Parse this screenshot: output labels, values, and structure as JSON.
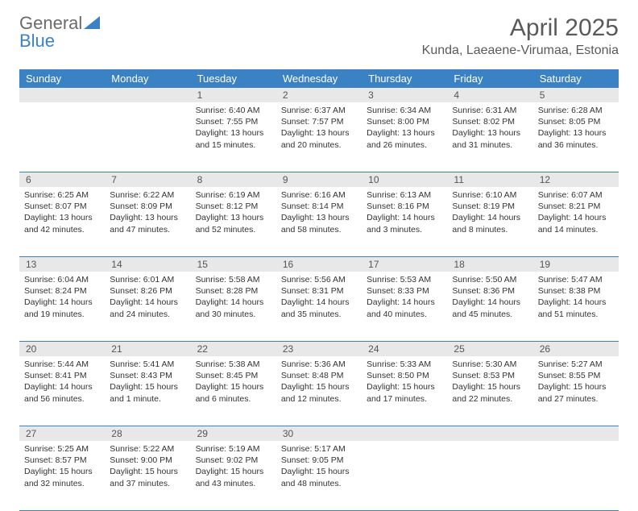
{
  "logo": {
    "text_a": "General",
    "text_b": "Blue"
  },
  "title": "April 2025",
  "location": "Kunda, Laeaene-Virumaa, Estonia",
  "colors": {
    "header_bg": "#3b82c4",
    "header_text": "#ffffff",
    "numrow_bg": "#e8e8e8",
    "text": "#333333",
    "logo_gray": "#6b6b6b",
    "logo_blue": "#3b82c4"
  },
  "daynames": [
    "Sunday",
    "Monday",
    "Tuesday",
    "Wednesday",
    "Thursday",
    "Friday",
    "Saturday"
  ],
  "weeks": [
    {
      "nums": [
        "",
        "",
        "1",
        "2",
        "3",
        "4",
        "5"
      ],
      "cells": [
        null,
        null,
        {
          "sunrise": "Sunrise: 6:40 AM",
          "sunset": "Sunset: 7:55 PM",
          "day1": "Daylight: 13 hours",
          "day2": "and 15 minutes."
        },
        {
          "sunrise": "Sunrise: 6:37 AM",
          "sunset": "Sunset: 7:57 PM",
          "day1": "Daylight: 13 hours",
          "day2": "and 20 minutes."
        },
        {
          "sunrise": "Sunrise: 6:34 AM",
          "sunset": "Sunset: 8:00 PM",
          "day1": "Daylight: 13 hours",
          "day2": "and 26 minutes."
        },
        {
          "sunrise": "Sunrise: 6:31 AM",
          "sunset": "Sunset: 8:02 PM",
          "day1": "Daylight: 13 hours",
          "day2": "and 31 minutes."
        },
        {
          "sunrise": "Sunrise: 6:28 AM",
          "sunset": "Sunset: 8:05 PM",
          "day1": "Daylight: 13 hours",
          "day2": "and 36 minutes."
        }
      ]
    },
    {
      "nums": [
        "6",
        "7",
        "8",
        "9",
        "10",
        "11",
        "12"
      ],
      "cells": [
        {
          "sunrise": "Sunrise: 6:25 AM",
          "sunset": "Sunset: 8:07 PM",
          "day1": "Daylight: 13 hours",
          "day2": "and 42 minutes."
        },
        {
          "sunrise": "Sunrise: 6:22 AM",
          "sunset": "Sunset: 8:09 PM",
          "day1": "Daylight: 13 hours",
          "day2": "and 47 minutes."
        },
        {
          "sunrise": "Sunrise: 6:19 AM",
          "sunset": "Sunset: 8:12 PM",
          "day1": "Daylight: 13 hours",
          "day2": "and 52 minutes."
        },
        {
          "sunrise": "Sunrise: 6:16 AM",
          "sunset": "Sunset: 8:14 PM",
          "day1": "Daylight: 13 hours",
          "day2": "and 58 minutes."
        },
        {
          "sunrise": "Sunrise: 6:13 AM",
          "sunset": "Sunset: 8:16 PM",
          "day1": "Daylight: 14 hours",
          "day2": "and 3 minutes."
        },
        {
          "sunrise": "Sunrise: 6:10 AM",
          "sunset": "Sunset: 8:19 PM",
          "day1": "Daylight: 14 hours",
          "day2": "and 8 minutes."
        },
        {
          "sunrise": "Sunrise: 6:07 AM",
          "sunset": "Sunset: 8:21 PM",
          "day1": "Daylight: 14 hours",
          "day2": "and 14 minutes."
        }
      ]
    },
    {
      "nums": [
        "13",
        "14",
        "15",
        "16",
        "17",
        "18",
        "19"
      ],
      "cells": [
        {
          "sunrise": "Sunrise: 6:04 AM",
          "sunset": "Sunset: 8:24 PM",
          "day1": "Daylight: 14 hours",
          "day2": "and 19 minutes."
        },
        {
          "sunrise": "Sunrise: 6:01 AM",
          "sunset": "Sunset: 8:26 PM",
          "day1": "Daylight: 14 hours",
          "day2": "and 24 minutes."
        },
        {
          "sunrise": "Sunrise: 5:58 AM",
          "sunset": "Sunset: 8:28 PM",
          "day1": "Daylight: 14 hours",
          "day2": "and 30 minutes."
        },
        {
          "sunrise": "Sunrise: 5:56 AM",
          "sunset": "Sunset: 8:31 PM",
          "day1": "Daylight: 14 hours",
          "day2": "and 35 minutes."
        },
        {
          "sunrise": "Sunrise: 5:53 AM",
          "sunset": "Sunset: 8:33 PM",
          "day1": "Daylight: 14 hours",
          "day2": "and 40 minutes."
        },
        {
          "sunrise": "Sunrise: 5:50 AM",
          "sunset": "Sunset: 8:36 PM",
          "day1": "Daylight: 14 hours",
          "day2": "and 45 minutes."
        },
        {
          "sunrise": "Sunrise: 5:47 AM",
          "sunset": "Sunset: 8:38 PM",
          "day1": "Daylight: 14 hours",
          "day2": "and 51 minutes."
        }
      ]
    },
    {
      "nums": [
        "20",
        "21",
        "22",
        "23",
        "24",
        "25",
        "26"
      ],
      "cells": [
        {
          "sunrise": "Sunrise: 5:44 AM",
          "sunset": "Sunset: 8:41 PM",
          "day1": "Daylight: 14 hours",
          "day2": "and 56 minutes."
        },
        {
          "sunrise": "Sunrise: 5:41 AM",
          "sunset": "Sunset: 8:43 PM",
          "day1": "Daylight: 15 hours",
          "day2": "and 1 minute."
        },
        {
          "sunrise": "Sunrise: 5:38 AM",
          "sunset": "Sunset: 8:45 PM",
          "day1": "Daylight: 15 hours",
          "day2": "and 6 minutes."
        },
        {
          "sunrise": "Sunrise: 5:36 AM",
          "sunset": "Sunset: 8:48 PM",
          "day1": "Daylight: 15 hours",
          "day2": "and 12 minutes."
        },
        {
          "sunrise": "Sunrise: 5:33 AM",
          "sunset": "Sunset: 8:50 PM",
          "day1": "Daylight: 15 hours",
          "day2": "and 17 minutes."
        },
        {
          "sunrise": "Sunrise: 5:30 AM",
          "sunset": "Sunset: 8:53 PM",
          "day1": "Daylight: 15 hours",
          "day2": "and 22 minutes."
        },
        {
          "sunrise": "Sunrise: 5:27 AM",
          "sunset": "Sunset: 8:55 PM",
          "day1": "Daylight: 15 hours",
          "day2": "and 27 minutes."
        }
      ]
    },
    {
      "nums": [
        "27",
        "28",
        "29",
        "30",
        "",
        "",
        ""
      ],
      "cells": [
        {
          "sunrise": "Sunrise: 5:25 AM",
          "sunset": "Sunset: 8:57 PM",
          "day1": "Daylight: 15 hours",
          "day2": "and 32 minutes."
        },
        {
          "sunrise": "Sunrise: 5:22 AM",
          "sunset": "Sunset: 9:00 PM",
          "day1": "Daylight: 15 hours",
          "day2": "and 37 minutes."
        },
        {
          "sunrise": "Sunrise: 5:19 AM",
          "sunset": "Sunset: 9:02 PM",
          "day1": "Daylight: 15 hours",
          "day2": "and 43 minutes."
        },
        {
          "sunrise": "Sunrise: 5:17 AM",
          "sunset": "Sunset: 9:05 PM",
          "day1": "Daylight: 15 hours",
          "day2": "and 48 minutes."
        },
        null,
        null,
        null
      ]
    }
  ]
}
